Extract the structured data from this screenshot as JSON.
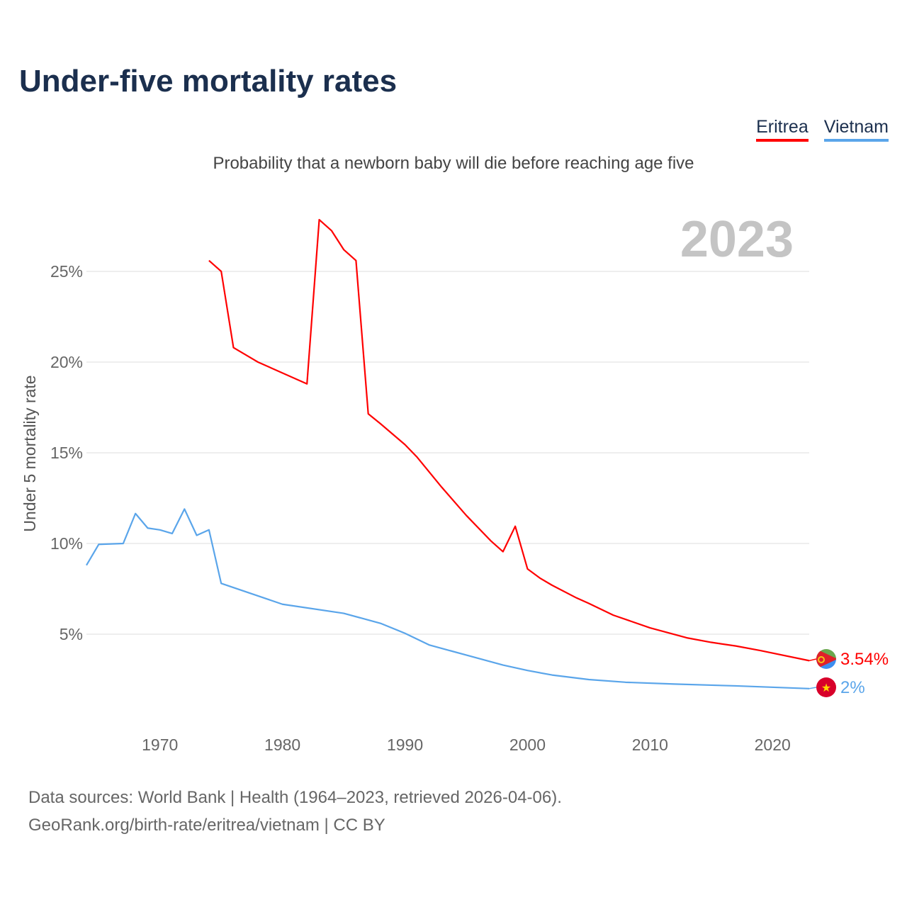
{
  "header": {
    "title": "Under-five mortality rates",
    "subtitle": "Probability that a newborn baby will die before reaching age five"
  },
  "legend": [
    {
      "label": "Eritrea",
      "color": "#ff0000"
    },
    {
      "label": "Vietnam",
      "color": "#5aa5ea"
    }
  ],
  "footer": {
    "line1": "Data sources: World Bank | Health (1964–2023, retrieved 2026-04-06).",
    "line2": "GeoRank.org/birth-rate/eritrea/vietnam | CC BY"
  },
  "chart_data": {
    "type": "line",
    "title": "Under-five mortality rates",
    "year_label": "2023",
    "ylabel": "Under 5 mortality rate",
    "xlabel": "",
    "xlim": [
      1964,
      2023
    ],
    "ylim": [
      0,
      28
    ],
    "xticks": [
      1970,
      1980,
      1990,
      2000,
      2010,
      2020
    ],
    "yticks": [
      {
        "v": 5,
        "label": "5%"
      },
      {
        "v": 10,
        "label": "10%"
      },
      {
        "v": 15,
        "label": "15%"
      },
      {
        "v": 20,
        "label": "20%"
      },
      {
        "v": 25,
        "label": "25%"
      }
    ],
    "grid": true,
    "series": [
      {
        "name": "Eritrea",
        "color": "#ff0000",
        "end_label": "3.54%",
        "flag": "eritrea-flag",
        "points": [
          [
            1974,
            25.6
          ],
          [
            1975,
            25.0
          ],
          [
            1976,
            20.8
          ],
          [
            1978,
            20.0
          ],
          [
            1982,
            18.8
          ],
          [
            1983,
            27.85
          ],
          [
            1984,
            27.25
          ],
          [
            1985,
            26.2
          ],
          [
            1986,
            25.6
          ],
          [
            1987,
            17.15
          ],
          [
            1988,
            16.6
          ],
          [
            1990,
            15.45
          ],
          [
            1991,
            14.75
          ],
          [
            1993,
            13.1
          ],
          [
            1995,
            11.55
          ],
          [
            1997,
            10.15
          ],
          [
            1998,
            9.55
          ],
          [
            1999,
            10.95
          ],
          [
            2000,
            8.6
          ],
          [
            2001,
            8.1
          ],
          [
            2002,
            7.7
          ],
          [
            2004,
            7.0
          ],
          [
            2005,
            6.7
          ],
          [
            2007,
            6.05
          ],
          [
            2010,
            5.35
          ],
          [
            2013,
            4.8
          ],
          [
            2015,
            4.55
          ],
          [
            2017,
            4.35
          ],
          [
            2019,
            4.1
          ],
          [
            2023,
            3.54
          ]
        ]
      },
      {
        "name": "Vietnam",
        "color": "#5aa5ea",
        "end_label": "2%",
        "flag": "vietnam-flag",
        "points": [
          [
            1964,
            8.8
          ],
          [
            1965,
            9.95
          ],
          [
            1967,
            10.0
          ],
          [
            1968,
            11.65
          ],
          [
            1969,
            10.85
          ],
          [
            1970,
            10.75
          ],
          [
            1971,
            10.55
          ],
          [
            1972,
            11.9
          ],
          [
            1973,
            10.45
          ],
          [
            1974,
            10.75
          ],
          [
            1975,
            7.8
          ],
          [
            1980,
            6.65
          ],
          [
            1985,
            6.15
          ],
          [
            1988,
            5.6
          ],
          [
            1990,
            5.05
          ],
          [
            1992,
            4.4
          ],
          [
            1995,
            3.85
          ],
          [
            1998,
            3.3
          ],
          [
            2000,
            3.0
          ],
          [
            2002,
            2.75
          ],
          [
            2005,
            2.5
          ],
          [
            2008,
            2.35
          ],
          [
            2012,
            2.25
          ],
          [
            2017,
            2.15
          ],
          [
            2023,
            2.0
          ]
        ]
      }
    ]
  }
}
